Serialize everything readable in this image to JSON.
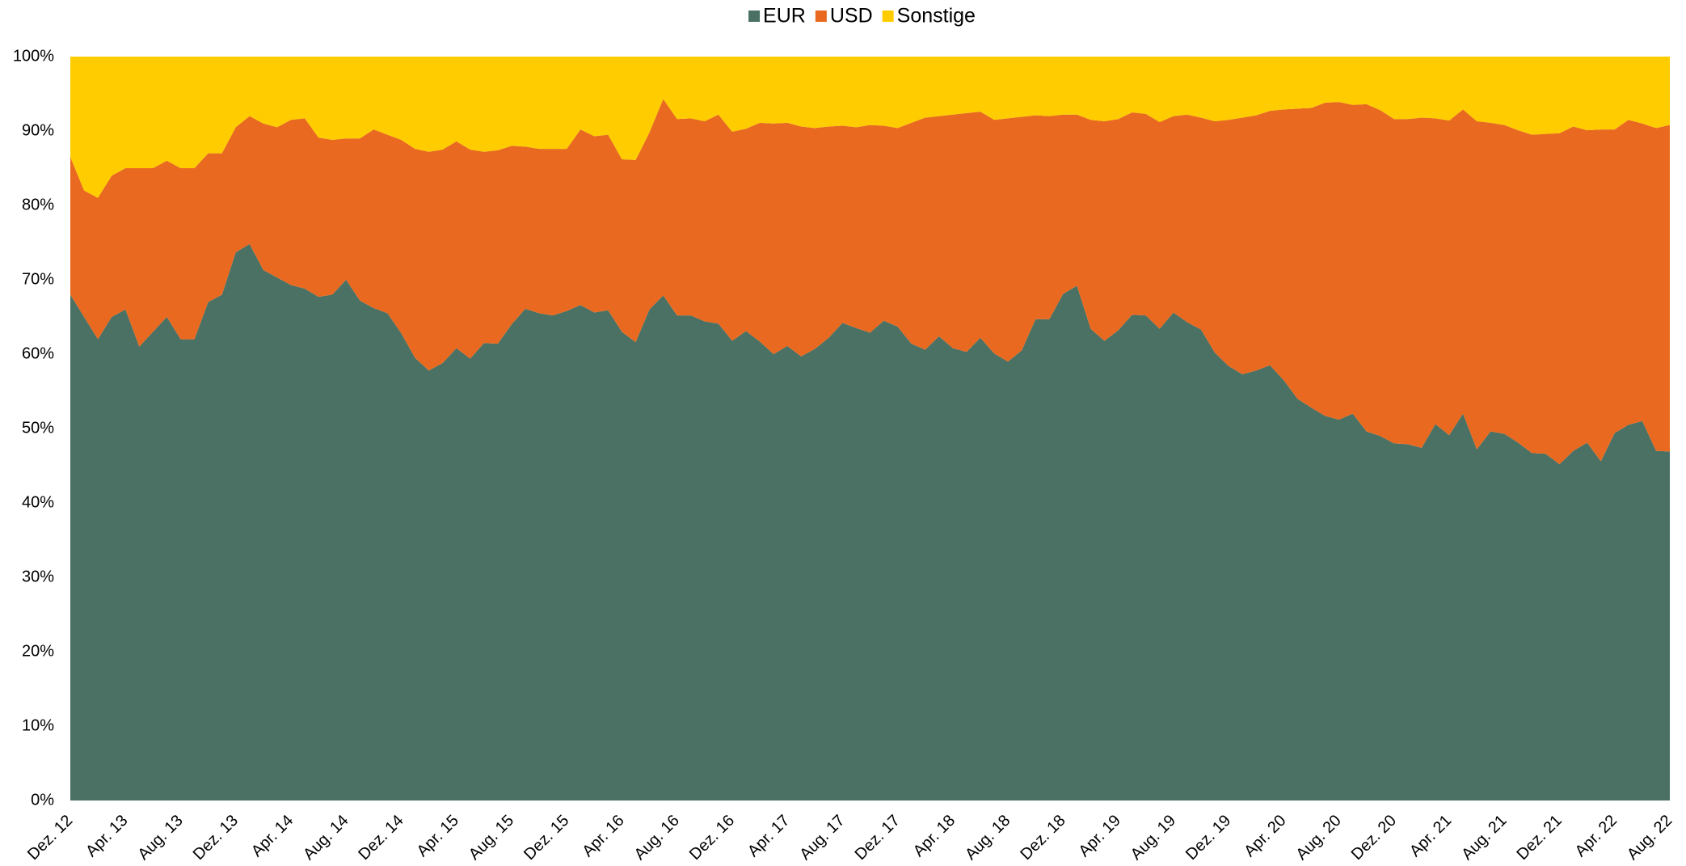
{
  "chart_data": {
    "type": "stacked_area",
    "categories": [
      "Dez. 12",
      null,
      null,
      null,
      "Apr. 13",
      null,
      null,
      null,
      "Aug. 13",
      null,
      null,
      null,
      "Dez. 13",
      null,
      null,
      null,
      "Apr. 14",
      null,
      null,
      null,
      "Aug. 14",
      null,
      null,
      null,
      "Dez. 14",
      null,
      null,
      null,
      "Apr. 15",
      null,
      null,
      null,
      "Aug. 15",
      null,
      null,
      null,
      "Dez. 15",
      null,
      null,
      null,
      "Apr. 16",
      null,
      null,
      null,
      "Aug. 16",
      null,
      null,
      null,
      "Dez. 16",
      null,
      null,
      null,
      "Apr. 17",
      null,
      null,
      null,
      "Aug. 17",
      null,
      null,
      null,
      "Dez. 17",
      null,
      null,
      null,
      "Apr. 18",
      null,
      null,
      null,
      "Aug. 18",
      null,
      null,
      null,
      "Dez. 18",
      null,
      null,
      null,
      "Apr. 19",
      null,
      null,
      null,
      "Aug. 19",
      null,
      null,
      null,
      "Dez. 19",
      null,
      null,
      null,
      "Apr. 20",
      null,
      null,
      null,
      "Aug. 20",
      null,
      null,
      null,
      "Dez. 20",
      null,
      null,
      null,
      "Apr. 21",
      null,
      null,
      null,
      "Aug. 21",
      null,
      null,
      null,
      "Dez. 21",
      null,
      null,
      null,
      "Apr. 22",
      null,
      null,
      null,
      "Aug. 22"
    ],
    "series": [
      {
        "name": "EUR",
        "color": "#4a7164",
        "values": [
          68,
          65,
          62,
          65,
          66,
          61,
          63,
          65,
          62,
          62,
          67,
          68,
          73.7,
          74.8,
          71.3,
          70.3,
          69.3,
          68.8,
          67.7,
          68,
          70,
          67.2,
          66.2,
          65.5,
          62.8,
          59.5,
          57.8,
          58.8,
          60.8,
          59.4,
          61.5,
          61.4,
          64,
          66.1,
          65.5,
          65.2,
          65.8,
          66.6,
          65.6,
          65.9,
          63,
          61.6,
          66,
          67.9,
          65.2,
          65.2,
          64.4,
          64.1,
          61.8,
          63.1,
          61.7,
          60,
          61.1,
          59.7,
          60.7,
          62.2,
          64.2,
          63.5,
          62.9,
          64.5,
          63.7,
          61.4,
          60.6,
          62.4,
          60.8,
          60.3,
          62.2,
          60.1,
          59,
          60.5,
          64.7,
          64.7,
          68.1,
          69.2,
          63.4,
          61.8,
          63.2,
          65.3,
          65.2,
          63.4,
          65.6,
          64.3,
          63.3,
          60.2,
          58.4,
          57.3,
          57.8,
          58.5,
          56.5,
          54,
          52.8,
          51.7,
          51.2,
          52,
          49.6,
          49,
          48,
          47.9,
          47.4,
          50.6,
          49.1,
          52,
          47.2,
          49.6,
          49.3,
          48.1,
          46.7,
          46.6,
          45.2,
          47,
          48.1,
          45.6,
          49.4,
          50.5,
          51,
          47,
          46.9
        ]
      },
      {
        "name": "USD",
        "color": "#e8691f",
        "values": [
          18.5,
          17,
          19,
          19,
          19,
          24,
          22,
          21,
          23,
          23,
          20,
          19,
          16.8,
          17.2,
          19.7,
          20.2,
          22.2,
          22.9,
          21.4,
          20.8,
          19,
          21.8,
          24,
          24,
          26,
          28.1,
          29.4,
          28.7,
          27.8,
          28.1,
          25.7,
          26,
          24,
          21.8,
          22.1,
          22.4,
          21.8,
          23.6,
          23.7,
          23.6,
          23.2,
          24.5,
          23.8,
          26.4,
          26.4,
          26.5,
          26.9,
          28.1,
          28.1,
          27.2,
          29.4,
          31,
          30,
          30.9,
          29.7,
          28.4,
          26.5,
          27,
          27.9,
          26.2,
          26.7,
          29.7,
          31.2,
          29.6,
          31.4,
          32.1,
          30.4,
          31.4,
          32.7,
          31.4,
          27.4,
          27.3,
          24.1,
          23,
          28.1,
          29.5,
          28.4,
          27.2,
          27.1,
          27.8,
          26.4,
          27.9,
          28.5,
          31.1,
          33.1,
          34.5,
          34.3,
          34.2,
          36.4,
          39,
          40.3,
          42.1,
          42.7,
          41.5,
          44,
          43.8,
          43.6,
          43.7,
          44.4,
          41.1,
          42.3,
          40.9,
          44.1,
          41.5,
          41.5,
          42,
          42.8,
          43,
          44.5,
          43.6,
          42,
          44.6,
          40.8,
          41,
          40,
          43.4,
          43.9
        ]
      },
      {
        "name": "Sonstige",
        "color": "#ffcc00",
        "values": [
          13.5,
          18,
          19,
          16,
          15,
          15,
          15,
          14,
          15,
          15,
          13,
          13,
          9.5,
          8,
          9,
          9.5,
          8.5,
          8.3,
          10.9,
          11.2,
          11,
          11,
          9.8,
          10.5,
          11.2,
          12.4,
          12.8,
          12.5,
          11.4,
          12.5,
          12.8,
          12.6,
          12,
          12.1,
          12.4,
          12.4,
          12.4,
          9.8,
          10.7,
          10.5,
          13.8,
          13.9,
          10.2,
          5.7,
          8.4,
          8.3,
          8.7,
          7.8,
          10.1,
          9.7,
          8.9,
          9,
          8.9,
          9.4,
          9.6,
          9.4,
          9.3,
          9.5,
          9.2,
          9.3,
          9.6,
          8.9,
          8.2,
          8,
          7.8,
          7.6,
          7.4,
          8.5,
          8.3,
          8.1,
          7.9,
          8,
          7.8,
          7.8,
          8.5,
          8.7,
          8.4,
          7.5,
          7.7,
          8.8,
          8,
          7.8,
          8.2,
          8.7,
          8.5,
          8.2,
          7.9,
          7.3,
          7.1,
          7,
          6.9,
          6.2,
          6.1,
          6.5,
          6.4,
          7.2,
          8.4,
          8.4,
          8.2,
          8.3,
          8.6,
          7.1,
          8.7,
          8.9,
          9.2,
          9.9,
          10.5,
          10.4,
          10.3,
          9.4,
          9.9,
          9.8,
          9.8,
          8.5,
          9,
          9.6,
          9.2
        ]
      }
    ],
    "ylim": [
      0,
      100
    ],
    "yticks": [
      {
        "value": 0,
        "label": "0%"
      },
      {
        "value": 10,
        "label": "10%"
      },
      {
        "value": 20,
        "label": "20%"
      },
      {
        "value": 30,
        "label": "30%"
      },
      {
        "value": 40,
        "label": "40%"
      },
      {
        "value": 50,
        "label": "50%"
      },
      {
        "value": 60,
        "label": "60%"
      },
      {
        "value": 70,
        "label": "70%"
      },
      {
        "value": 80,
        "label": "80%"
      },
      {
        "value": 90,
        "label": "90%"
      },
      {
        "value": 100,
        "label": "100%"
      }
    ],
    "grid": false,
    "legend": "top"
  }
}
